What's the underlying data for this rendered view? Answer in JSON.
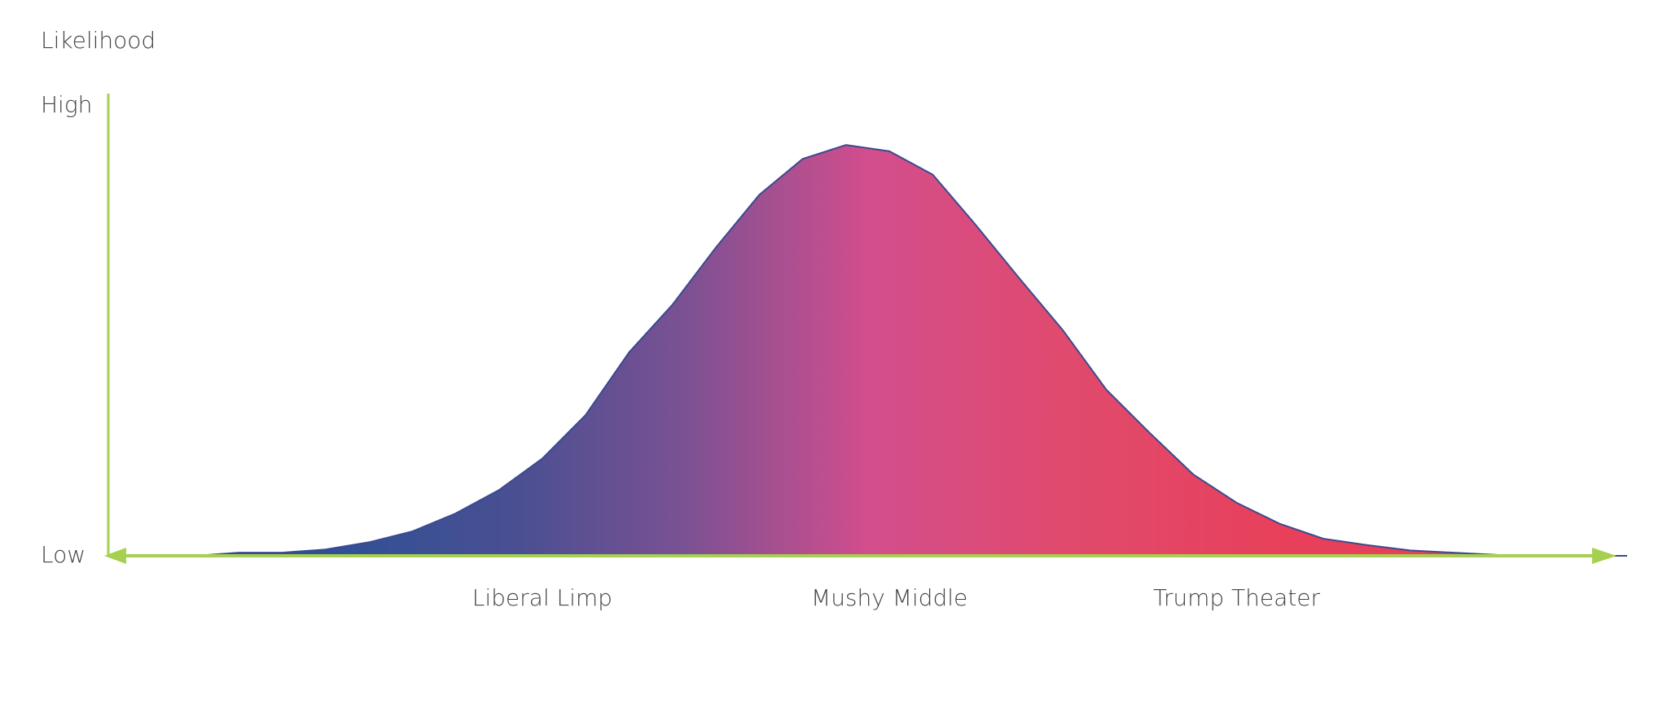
{
  "chart_data": {
    "type": "area",
    "title": "Likelihood",
    "categories": [
      null,
      null,
      null,
      null,
      null,
      null,
      null,
      null,
      null,
      null,
      "Liberal Limp",
      null,
      null,
      null,
      null,
      null,
      null,
      null,
      "Mushy Middle",
      null,
      null,
      null,
      null,
      null,
      null,
      null,
      "Trump Theater",
      null,
      null,
      null,
      null,
      null,
      null,
      null,
      null,
      null
    ],
    "values": [
      0,
      0,
      0,
      0.7,
      0.7,
      1.4,
      3,
      5.4,
      9.4,
      14.6,
      21.6,
      31.3,
      45.2,
      55.8,
      68.5,
      80.2,
      88.2,
      91.3,
      89.9,
      84.7,
      73.4,
      61.6,
      50.1,
      36.9,
      27.3,
      18.1,
      11.8,
      7.1,
      3.8,
      2.4,
      1.2,
      0.7,
      0.2,
      0,
      0,
      0
    ],
    "ylim": [
      0,
      100
    ],
    "yticks": [
      {
        "value": 0,
        "label": "Low"
      },
      {
        "value": 100,
        "label": "High"
      }
    ],
    "gradient": [
      "#2e5196",
      "#4a4f92",
      "#7b5193",
      "#d24e8d",
      "#e04a6d",
      "#e8405a"
    ],
    "line_color": "#3b4a8f",
    "axis_color": "#a6d04f"
  }
}
